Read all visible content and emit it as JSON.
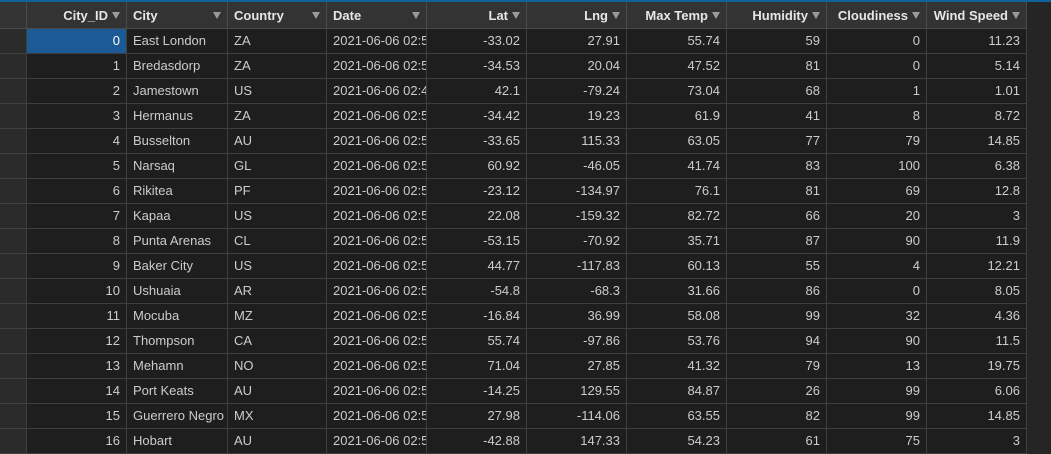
{
  "table": {
    "headers": [
      "City_ID",
      "City",
      "Country",
      "Date",
      "Lat",
      "Lng",
      "Max Temp",
      "Humidity",
      "Cloudiness",
      "Wind Speed"
    ],
    "rows": [
      [
        "0",
        "East London",
        "ZA",
        "2021-06-06 02:5",
        "-33.02",
        "27.91",
        "55.74",
        "59",
        "0",
        "11.23"
      ],
      [
        "1",
        "Bredasdorp",
        "ZA",
        "2021-06-06 02:5",
        "-34.53",
        "20.04",
        "47.52",
        "81",
        "0",
        "5.14"
      ],
      [
        "2",
        "Jamestown",
        "US",
        "2021-06-06 02:4",
        "42.1",
        "-79.24",
        "73.04",
        "68",
        "1",
        "1.01"
      ],
      [
        "3",
        "Hermanus",
        "ZA",
        "2021-06-06 02:5",
        "-34.42",
        "19.23",
        "61.9",
        "41",
        "8",
        "8.72"
      ],
      [
        "4",
        "Busselton",
        "AU",
        "2021-06-06 02:5",
        "-33.65",
        "115.33",
        "63.05",
        "77",
        "79",
        "14.85"
      ],
      [
        "5",
        "Narsaq",
        "GL",
        "2021-06-06 02:5",
        "60.92",
        "-46.05",
        "41.74",
        "83",
        "100",
        "6.38"
      ],
      [
        "6",
        "Rikitea",
        "PF",
        "2021-06-06 02:5",
        "-23.12",
        "-134.97",
        "76.1",
        "81",
        "69",
        "12.8"
      ],
      [
        "7",
        "Kapaa",
        "US",
        "2021-06-06 02:5",
        "22.08",
        "-159.32",
        "82.72",
        "66",
        "20",
        "3"
      ],
      [
        "8",
        "Punta Arenas",
        "CL",
        "2021-06-06 02:5",
        "-53.15",
        "-70.92",
        "35.71",
        "87",
        "90",
        "11.9"
      ],
      [
        "9",
        "Baker City",
        "US",
        "2021-06-06 02:5",
        "44.77",
        "-117.83",
        "60.13",
        "55",
        "4",
        "12.21"
      ],
      [
        "10",
        "Ushuaia",
        "AR",
        "2021-06-06 02:5",
        "-54.8",
        "-68.3",
        "31.66",
        "86",
        "0",
        "8.05"
      ],
      [
        "11",
        "Mocuba",
        "MZ",
        "2021-06-06 02:5",
        "-16.84",
        "36.99",
        "58.08",
        "99",
        "32",
        "4.36"
      ],
      [
        "12",
        "Thompson",
        "CA",
        "2021-06-06 02:5",
        "55.74",
        "-97.86",
        "53.76",
        "94",
        "90",
        "11.5"
      ],
      [
        "13",
        "Mehamn",
        "NO",
        "2021-06-06 02:5",
        "71.04",
        "27.85",
        "41.32",
        "79",
        "13",
        "19.75"
      ],
      [
        "14",
        "Port Keats",
        "AU",
        "2021-06-06 02:5",
        "-14.25",
        "129.55",
        "84.87",
        "26",
        "99",
        "6.06"
      ],
      [
        "15",
        "Guerrero Negro",
        "MX",
        "2021-06-06 02:5",
        "27.98",
        "-114.06",
        "63.55",
        "82",
        "99",
        "14.85"
      ],
      [
        "16",
        "Hobart",
        "AU",
        "2021-06-06 02:5",
        "-42.88",
        "147.33",
        "54.23",
        "61",
        "75",
        "3"
      ]
    ]
  }
}
